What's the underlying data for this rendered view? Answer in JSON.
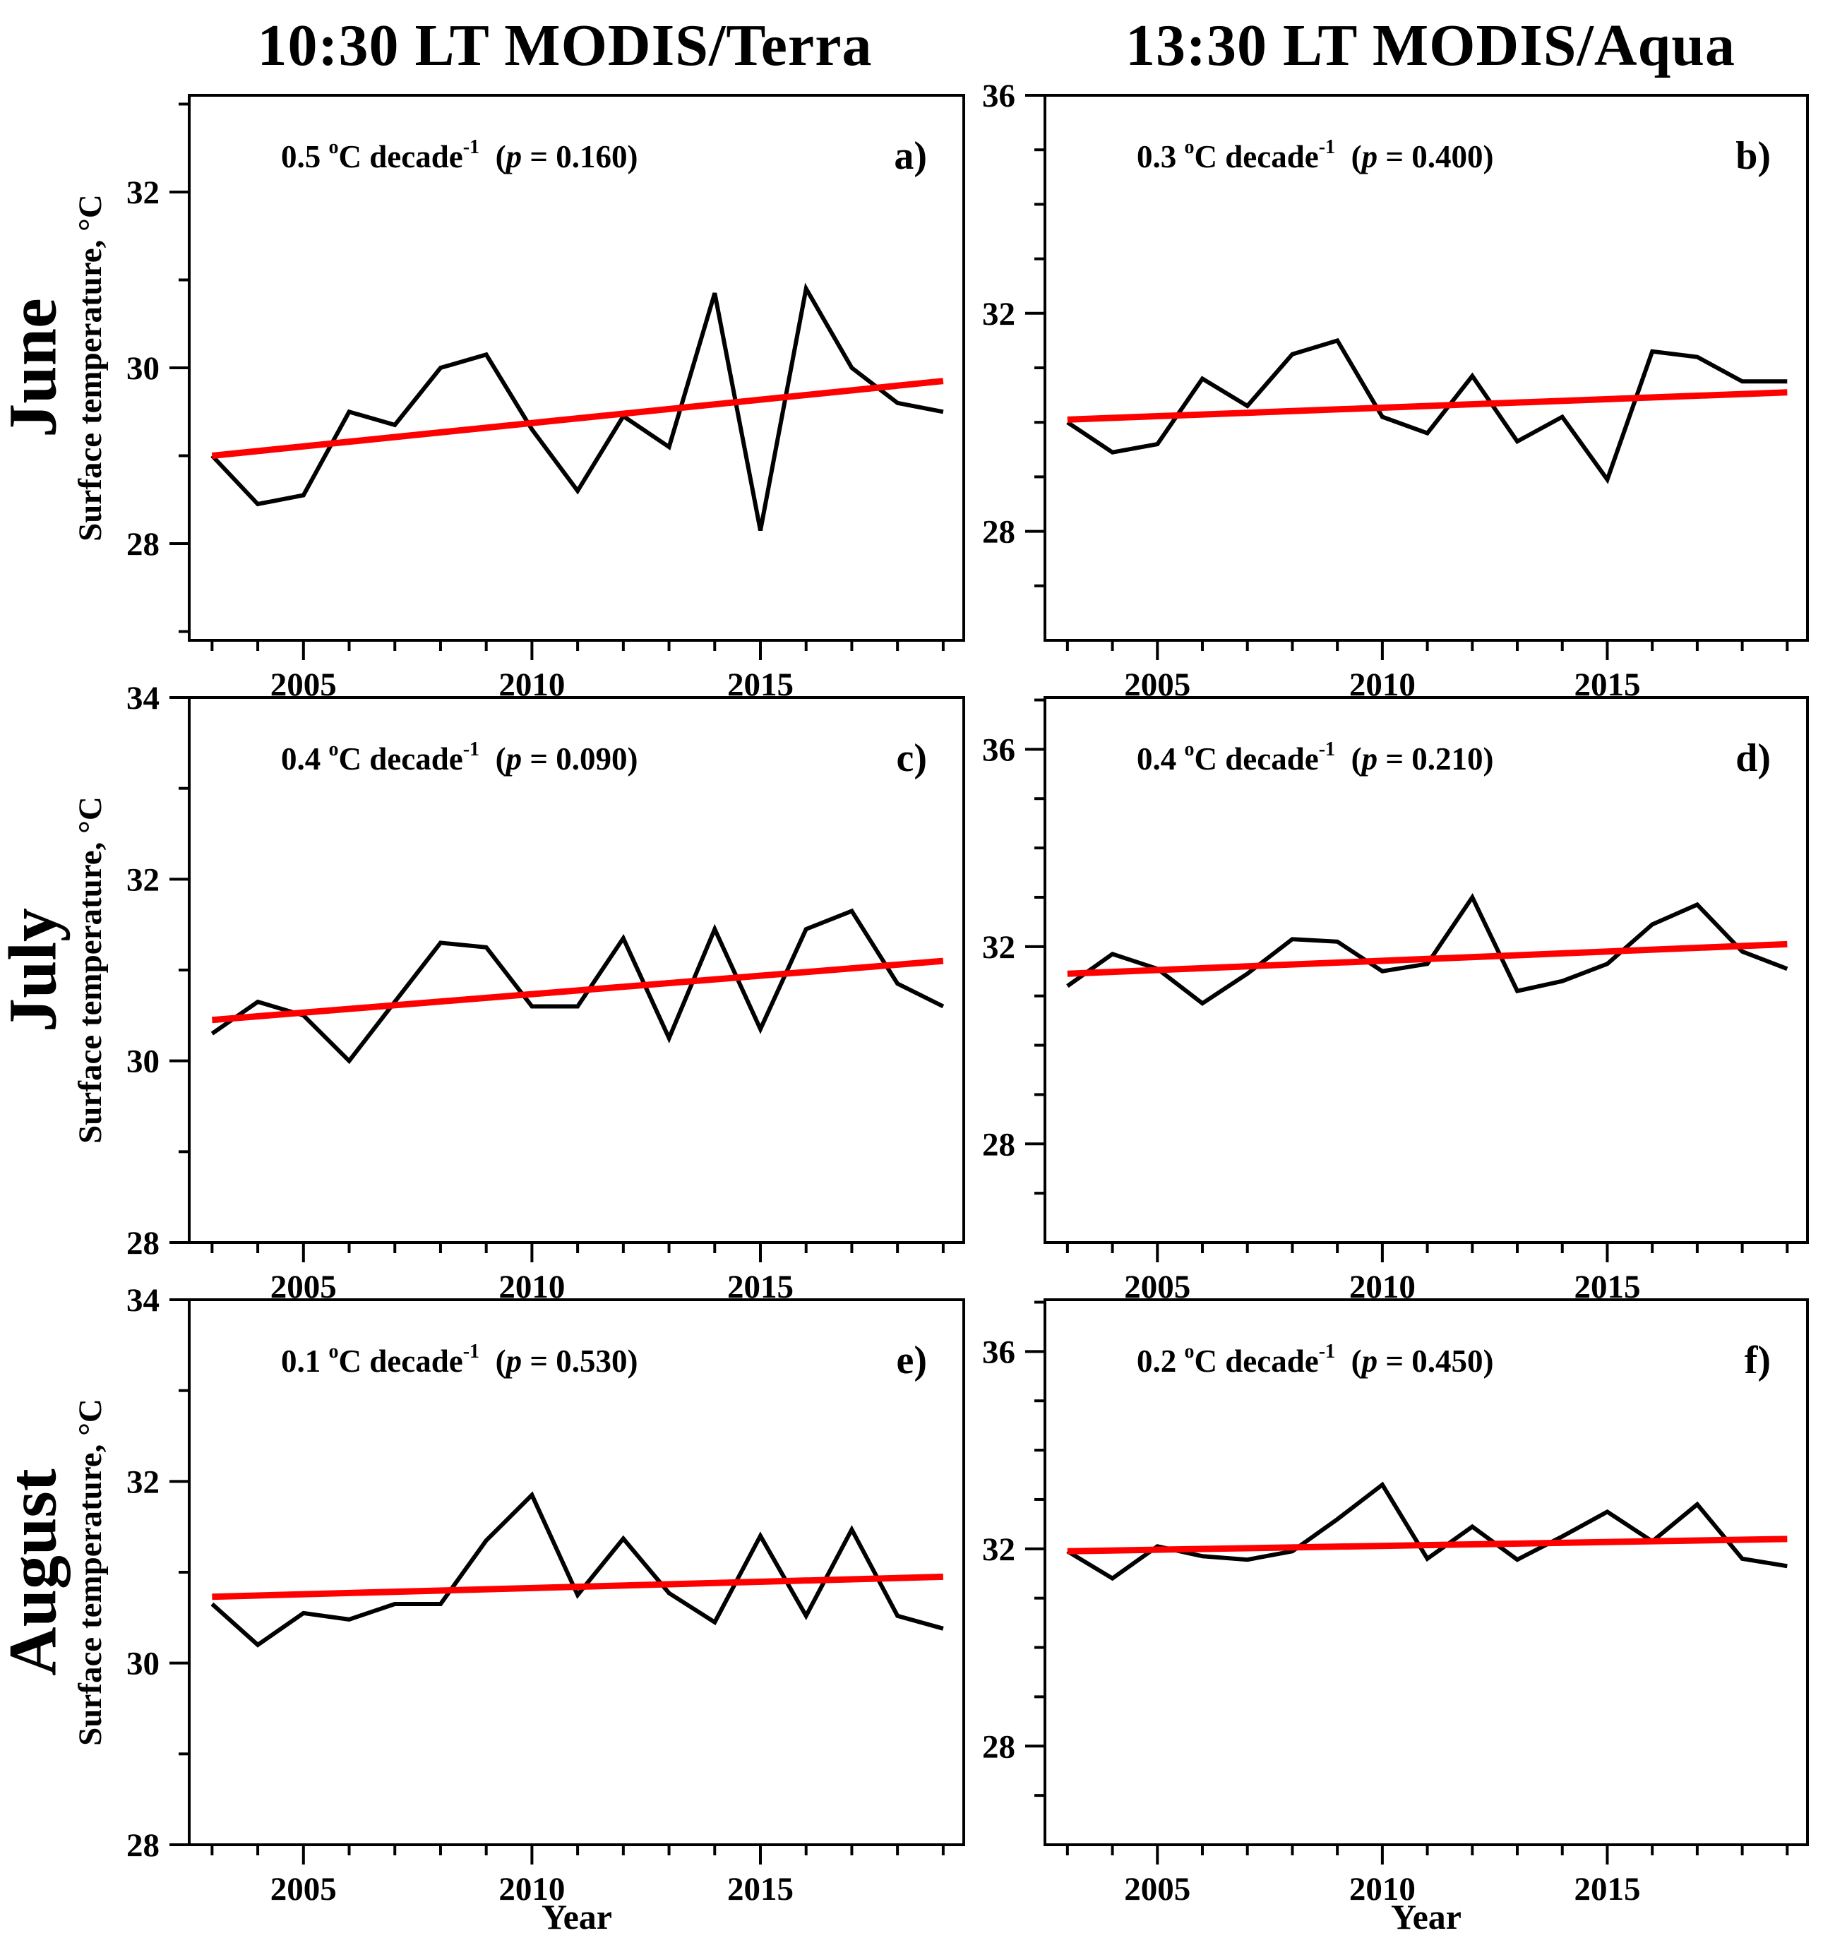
{
  "header": {
    "left_title": "10:30 LT  MODIS/Terra",
    "right_title": "13:30 LT  MODIS/Aqua"
  },
  "rows": [
    {
      "label": "June"
    },
    {
      "label": "July"
    },
    {
      "label": "August"
    }
  ],
  "axis": {
    "x_label": "Year",
    "y_label": "Surface temperature, °C",
    "x_range": [
      2002.5,
      2019.45
    ],
    "years": [
      2003,
      2004,
      2005,
      2006,
      2007,
      2008,
      2009,
      2010,
      2011,
      2012,
      2013,
      2014,
      2015,
      2016,
      2017,
      2018,
      2019
    ],
    "xticks_major": [
      2005,
      2010,
      2015
    ],
    "xticks_minor": [
      2003,
      2004,
      2006,
      2007,
      2008,
      2009,
      2011,
      2012,
      2013,
      2014,
      2016,
      2017,
      2018,
      2019
    ]
  },
  "annotation_format": {
    "degree": "o",
    "unit": "C decade",
    "exponent": "-1",
    "p_label": "p",
    "equals": " = "
  },
  "colors": {
    "series": "#000000",
    "trend": "#ff0000",
    "axis": "#000000",
    "text": "#000000",
    "background": "#ffffff"
  },
  "chart_data": [
    {
      "id": "a",
      "letter": "a)",
      "month": "June",
      "column_title": "10:30 LT  MODIS/Terra",
      "type": "line",
      "slope": "0.5",
      "p_value": "0.160",
      "ylim": [
        26.9,
        33.1
      ],
      "yticks": [
        28,
        30,
        32
      ],
      "yticks_minor": [
        27,
        29,
        31,
        33
      ],
      "values": [
        29.0,
        28.45,
        28.55,
        29.5,
        29.35,
        30.0,
        30.15,
        29.3,
        28.6,
        29.45,
        29.1,
        30.85,
        28.15,
        30.9,
        30.0,
        29.6,
        29.5
      ],
      "trend_line": {
        "x": [
          2003,
          2019
        ],
        "y": [
          29.0,
          29.85
        ]
      }
    },
    {
      "id": "b",
      "letter": "b)",
      "month": "June",
      "column_title": "13:30 LT  MODIS/Aqua",
      "type": "line",
      "slope": "0.3",
      "p_value": "0.400",
      "ylim": [
        26.0,
        36.0
      ],
      "yticks": [
        28,
        32,
        36
      ],
      "yticks_minor": [
        27,
        29,
        30,
        31,
        33,
        34,
        35
      ],
      "values": [
        30.0,
        29.45,
        29.6,
        30.8,
        30.3,
        31.25,
        31.5,
        30.1,
        29.8,
        30.85,
        29.65,
        30.1,
        28.95,
        31.3,
        31.2,
        30.75,
        30.75
      ],
      "trend_line": {
        "x": [
          2003,
          2019
        ],
        "y": [
          30.05,
          30.55
        ]
      }
    },
    {
      "id": "c",
      "letter": "c)",
      "month": "July",
      "column_title": "10:30 LT  MODIS/Terra",
      "type": "line",
      "slope": "0.4",
      "p_value": "0.090",
      "ylim": [
        28.0,
        34.0
      ],
      "yticks": [
        28,
        30,
        32,
        34
      ],
      "yticks_minor": [
        29,
        31,
        33
      ],
      "values": [
        30.3,
        30.65,
        30.5,
        30.0,
        30.65,
        31.3,
        31.25,
        30.6,
        30.6,
        31.35,
        30.25,
        31.45,
        30.35,
        31.45,
        31.65,
        30.85,
        30.6
      ],
      "trend_line": {
        "x": [
          2003,
          2019
        ],
        "y": [
          30.45,
          31.1
        ]
      }
    },
    {
      "id": "d",
      "letter": "d)",
      "month": "July",
      "column_title": "13:30 LT  MODIS/Aqua",
      "type": "line",
      "slope": "0.4",
      "p_value": "0.210",
      "ylim": [
        26.0,
        37.05
      ],
      "yticks": [
        28,
        32,
        36
      ],
      "yticks_minor": [
        27,
        29,
        30,
        31,
        33,
        34,
        35,
        37
      ],
      "values": [
        31.2,
        31.85,
        31.55,
        30.85,
        31.45,
        32.15,
        32.1,
        31.5,
        31.65,
        33.0,
        31.1,
        31.3,
        31.65,
        32.45,
        32.85,
        31.9,
        31.55
      ],
      "trend_line": {
        "x": [
          2003,
          2019
        ],
        "y": [
          31.45,
          32.05
        ]
      }
    },
    {
      "id": "e",
      "letter": "e)",
      "month": "August",
      "column_title": "10:30 LT  MODIS/Terra",
      "type": "line",
      "slope": "0.1",
      "p_value": "0.530",
      "ylim": [
        28.0,
        34.0
      ],
      "yticks": [
        28,
        30,
        32,
        34
      ],
      "yticks_minor": [
        29,
        31,
        33
      ],
      "values": [
        30.65,
        30.2,
        30.55,
        30.48,
        30.65,
        30.65,
        31.35,
        31.85,
        30.75,
        31.37,
        30.77,
        30.45,
        31.4,
        30.52,
        31.47,
        30.52,
        30.38
      ],
      "trend_line": {
        "x": [
          2003,
          2019
        ],
        "y": [
          30.73,
          30.95
        ]
      }
    },
    {
      "id": "f",
      "letter": "f)",
      "month": "August",
      "column_title": "13:30 LT  MODIS/Aqua",
      "type": "line",
      "slope": "0.2",
      "p_value": "0.450",
      "ylim": [
        26.0,
        37.05
      ],
      "yticks": [
        28,
        32,
        36
      ],
      "yticks_minor": [
        27,
        29,
        30,
        31,
        33,
        34,
        35,
        37
      ],
      "values": [
        31.95,
        31.4,
        32.05,
        31.85,
        31.78,
        31.95,
        32.6,
        33.3,
        31.8,
        32.45,
        31.78,
        32.25,
        32.75,
        32.15,
        32.9,
        31.8,
        31.65
      ],
      "trend_line": {
        "x": [
          2003,
          2019
        ],
        "y": [
          31.95,
          32.2
        ]
      }
    }
  ]
}
